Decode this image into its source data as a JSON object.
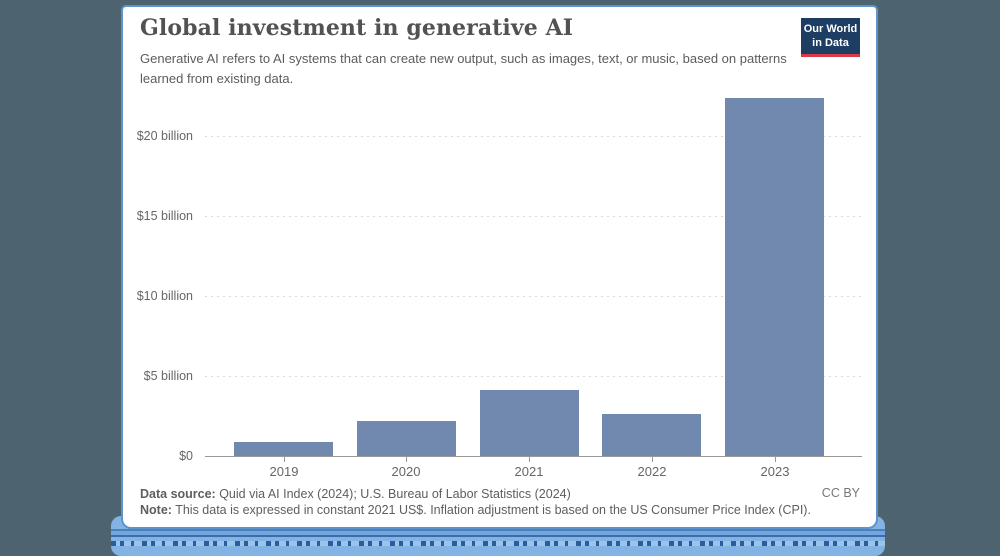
{
  "background_color": "#4d6470",
  "card": {
    "border_color": "#5d94cc"
  },
  "header": {
    "title": "Global investment in generative AI",
    "subtitle": "Generative AI refers to AI systems that can create new output, such as images, text, or music, based on patterns learned from existing data.",
    "logo": {
      "line1": "Our World",
      "line2": "in Data",
      "bg_color": "#1d3d63",
      "underline_color": "#d93a4a"
    }
  },
  "chart_data": {
    "type": "bar",
    "title": "Global investment in generative AI",
    "categories": [
      "2019",
      "2020",
      "2021",
      "2022",
      "2023"
    ],
    "values": [
      0.9,
      2.2,
      4.1,
      2.6,
      22.4
    ],
    "unit": "billion constant 2021 US$",
    "xlabel": "",
    "ylabel": "",
    "ylim": [
      0,
      22.5
    ],
    "yticks": [
      {
        "value": 0,
        "label": "$0"
      },
      {
        "value": 5,
        "label": "$5 billion"
      },
      {
        "value": 10,
        "label": "$10 billion"
      },
      {
        "value": 15,
        "label": "$15 billion"
      },
      {
        "value": 20,
        "label": "$20 billion"
      }
    ],
    "grid": true,
    "legend": false,
    "bar_color": "#7189af"
  },
  "footer": {
    "source_label": "Data source:",
    "source_text": " Quid via AI Index (2024); U.S. Bureau of Labor Statistics (2024)",
    "note_label": "Note:",
    "note_text": " This data is expressed in constant 2021 US$. Inflation adjustment is based on the US Consumer Price Index (CPI).",
    "license": "CC BY"
  },
  "decor": {
    "stripe_colors": [
      "#4a7fc1",
      "#74a6da",
      "#3a6db0",
      "#83b3e3"
    ]
  }
}
